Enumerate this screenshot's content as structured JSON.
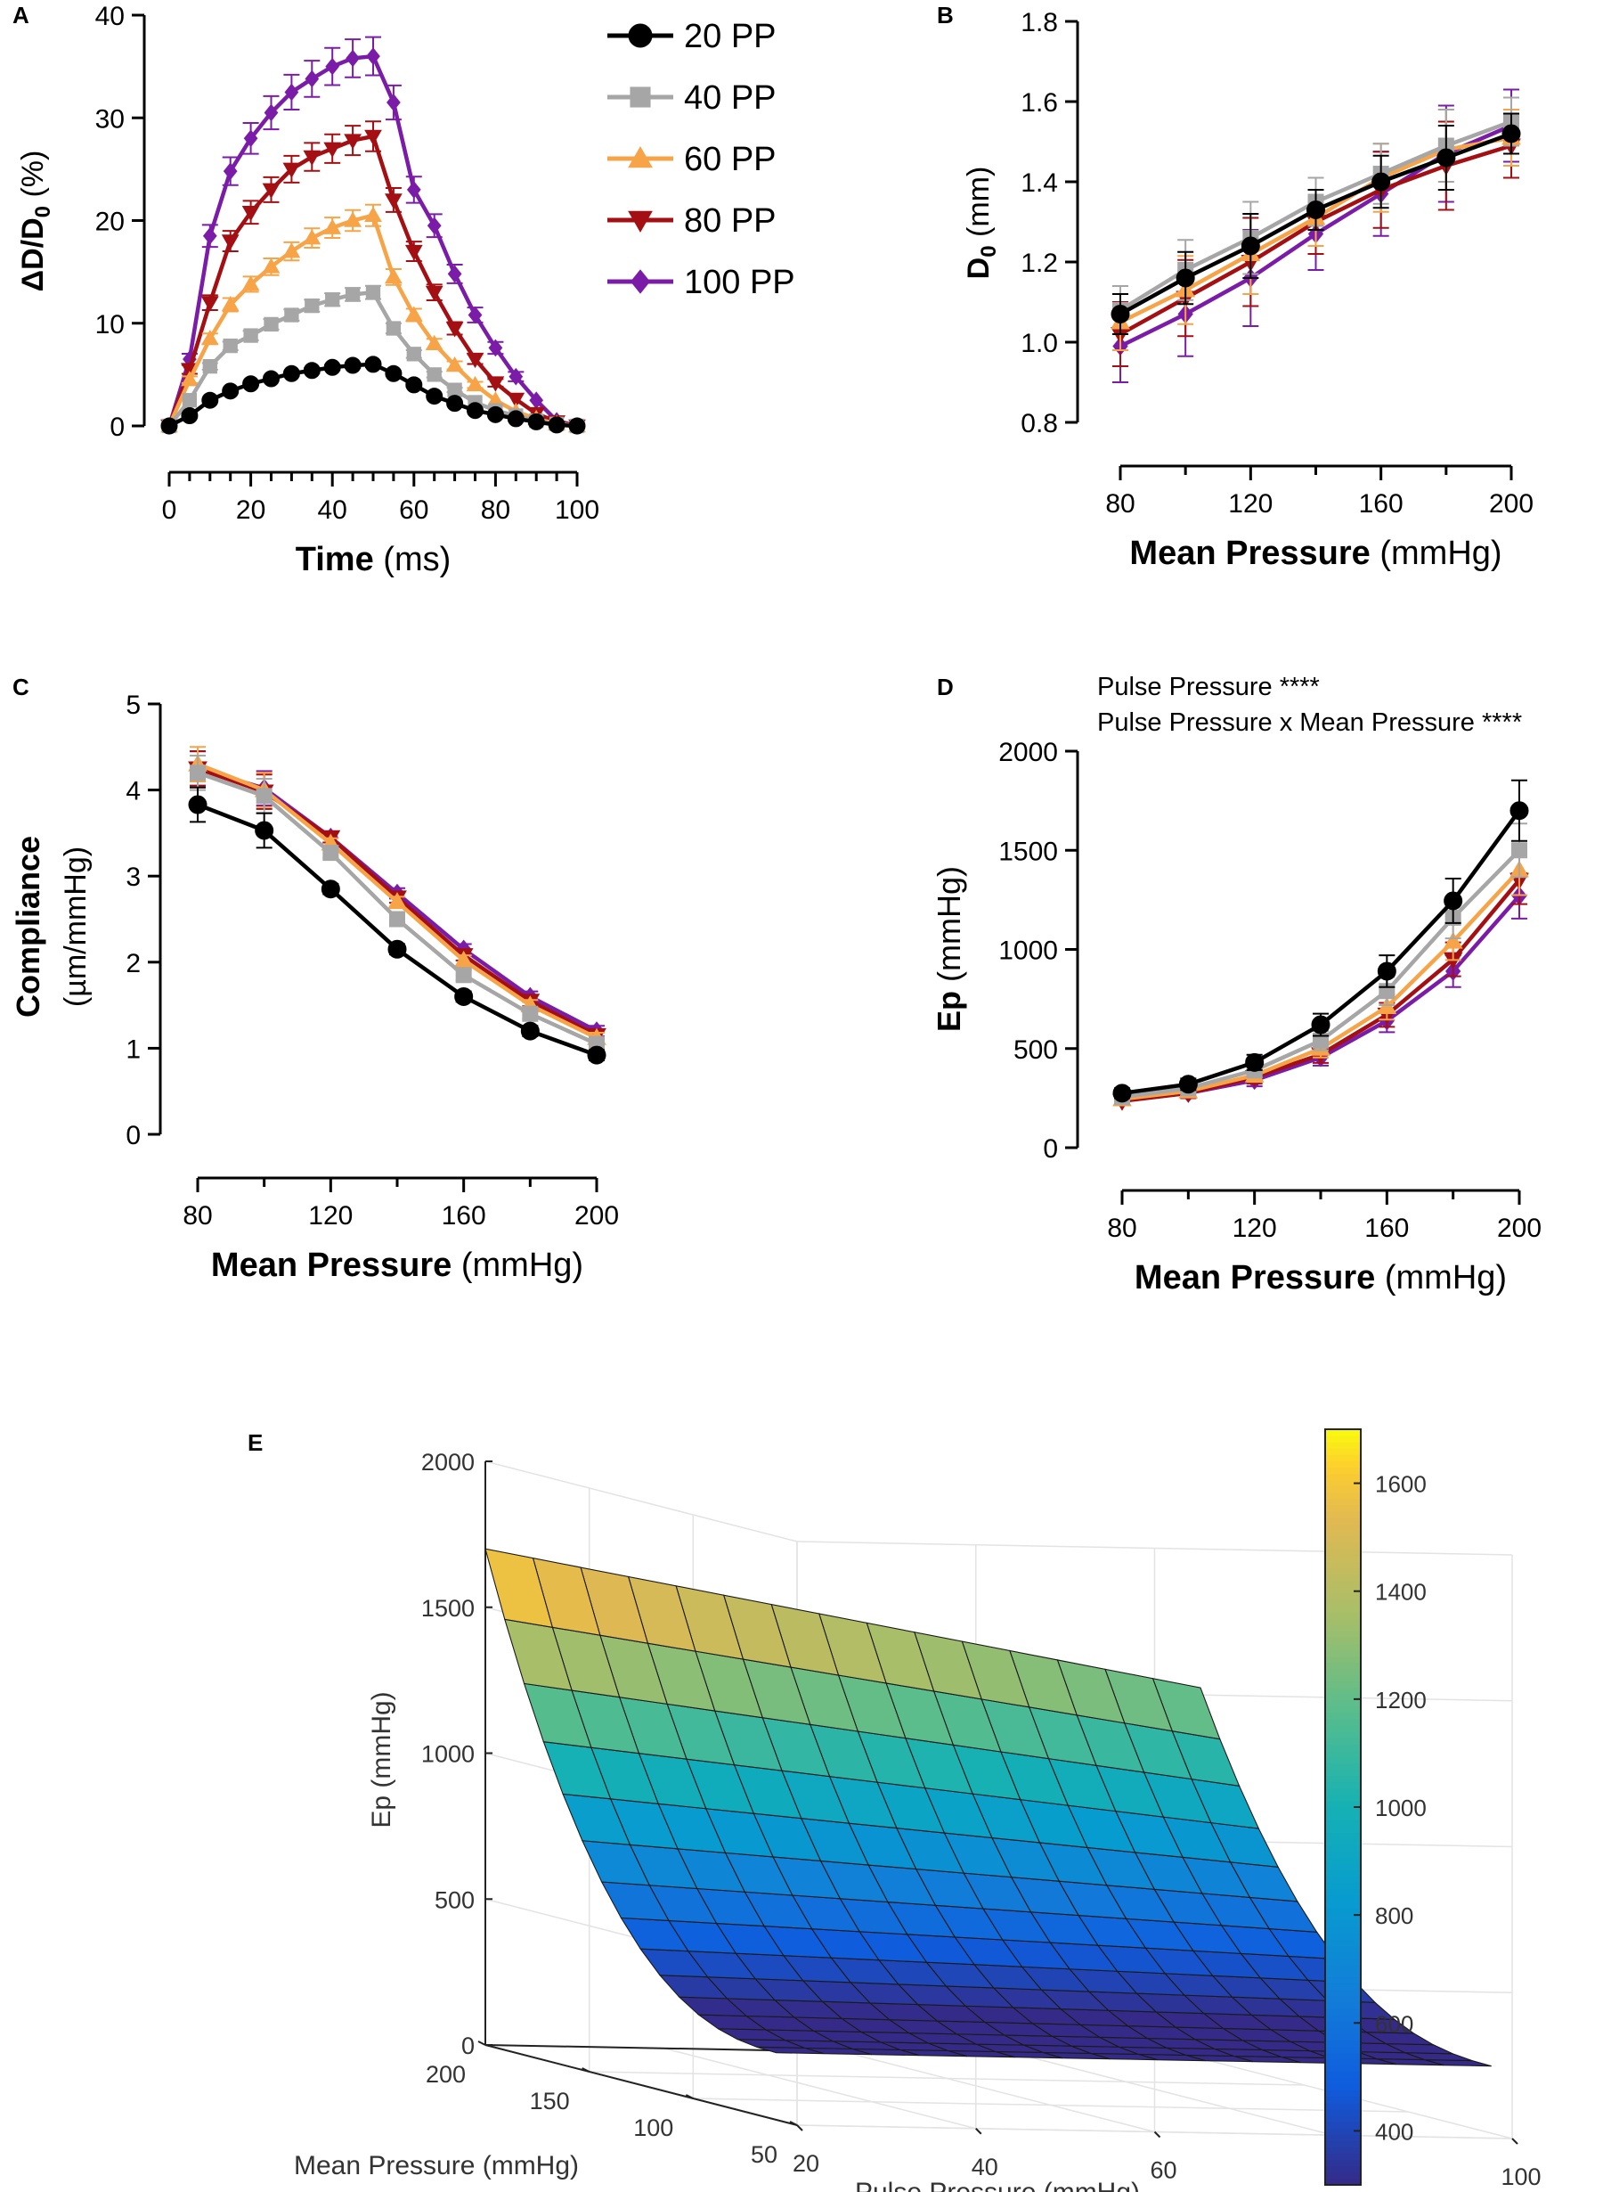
{
  "colors": {
    "pp20": "#000000",
    "pp40": "#a6a6a6",
    "pp60": "#f7a448",
    "pp80": "#a30f12",
    "pp100": "#7a1ca8"
  },
  "chart_data": [
    {
      "panel": "A",
      "type": "line",
      "xlabel_bold": "Time",
      "xlabel_unit": "(ms)",
      "ylabel": "ΔD/D₀ (%)",
      "xlim": [
        0,
        100
      ],
      "ylim": [
        0,
        40
      ],
      "xticks": [
        0,
        20,
        40,
        60,
        80,
        100
      ],
      "yticks": [
        0,
        10,
        20,
        30,
        40
      ],
      "x": [
        0,
        5,
        10,
        15,
        20,
        25,
        30,
        35,
        40,
        45,
        50,
        55,
        60,
        65,
        70,
        75,
        80,
        85,
        90,
        95,
        100
      ],
      "legend": [
        "20 PP",
        "40 PP",
        "60 PP",
        "80 PP",
        "100 PP"
      ],
      "series": [
        {
          "name": "20 PP",
          "marker": "circle",
          "values": [
            0,
            1.0,
            2.5,
            3.4,
            4.1,
            4.6,
            5.1,
            5.4,
            5.7,
            5.9,
            6.0,
            5.1,
            4.0,
            2.9,
            2.2,
            1.5,
            1.1,
            0.7,
            0.4,
            0.1,
            0
          ]
        },
        {
          "name": "40 PP",
          "marker": "square",
          "values": [
            0,
            2.5,
            5.8,
            7.8,
            8.8,
            9.9,
            10.8,
            11.7,
            12.3,
            12.8,
            13.0,
            9.5,
            7.0,
            5.0,
            3.5,
            2.3,
            1.5,
            1.0,
            0.5,
            0.2,
            0
          ]
        },
        {
          "name": "60 PP",
          "marker": "triangle",
          "values": [
            0,
            4.5,
            8.5,
            11.8,
            13.8,
            15.5,
            17.0,
            18.3,
            19.3,
            20.0,
            20.5,
            14.5,
            10.8,
            8.0,
            5.9,
            4.0,
            2.5,
            1.4,
            0.7,
            0.2,
            0
          ]
        },
        {
          "name": "80 PP",
          "marker": "triangle-down",
          "values": [
            0,
            5.5,
            12.0,
            18.0,
            20.8,
            23.0,
            25.0,
            26.2,
            27.0,
            27.8,
            28.2,
            22.0,
            17.0,
            13.0,
            9.5,
            6.5,
            4.2,
            2.6,
            1.2,
            0.4,
            0
          ]
        },
        {
          "name": "100 PP",
          "marker": "diamond",
          "values": [
            0,
            6.5,
            18.5,
            24.8,
            28.0,
            30.5,
            32.5,
            33.8,
            35.0,
            35.8,
            36.0,
            31.5,
            23.0,
            19.5,
            14.8,
            10.8,
            7.6,
            4.8,
            2.5,
            0.5,
            0
          ]
        }
      ]
    },
    {
      "panel": "B",
      "type": "line",
      "xlabel_bold": "Mean Pressure",
      "xlabel_unit": "(mmHg)",
      "ylabel": "D₀ (mm)",
      "xlim": [
        80,
        200
      ],
      "ylim": [
        0.8,
        1.8
      ],
      "xticks": [
        80,
        120,
        160,
        200
      ],
      "yticks": [
        0.8,
        1.0,
        1.2,
        1.4,
        1.6,
        1.8
      ],
      "x": [
        80,
        100,
        120,
        140,
        160,
        180,
        200
      ],
      "series": [
        {
          "name": "20 PP",
          "marker": "circle",
          "values": [
            1.07,
            1.16,
            1.24,
            1.33,
            1.4,
            1.46,
            1.52
          ]
        },
        {
          "name": "40 PP",
          "marker": "square",
          "values": [
            1.08,
            1.18,
            1.26,
            1.35,
            1.42,
            1.49,
            1.55
          ]
        },
        {
          "name": "60 PP",
          "marker": "triangle",
          "values": [
            1.05,
            1.13,
            1.22,
            1.31,
            1.41,
            1.48,
            1.51
          ]
        },
        {
          "name": "80 PP",
          "marker": "triangle-down",
          "values": [
            1.02,
            1.11,
            1.2,
            1.3,
            1.38,
            1.44,
            1.49
          ]
        },
        {
          "name": "100 PP",
          "marker": "diamond",
          "values": [
            0.99,
            1.07,
            1.16,
            1.27,
            1.37,
            1.47,
            1.54
          ]
        }
      ]
    },
    {
      "panel": "C",
      "type": "line",
      "xlabel_bold": "Mean Pressure",
      "xlabel_unit": "(mmHg)",
      "ylabel_bold": "Compliance",
      "ylabel_unit": "(µm/mmHg)",
      "xlim": [
        80,
        200
      ],
      "ylim": [
        0,
        5
      ],
      "xticks": [
        80,
        120,
        160,
        200
      ],
      "yticks": [
        0,
        1,
        2,
        3,
        4,
        5
      ],
      "x": [
        80,
        100,
        120,
        140,
        160,
        180,
        200
      ],
      "series": [
        {
          "name": "20 PP",
          "marker": "circle",
          "values": [
            3.83,
            3.53,
            2.85,
            2.15,
            1.6,
            1.2,
            0.92
          ]
        },
        {
          "name": "40 PP",
          "marker": "square",
          "values": [
            4.2,
            3.93,
            3.27,
            2.5,
            1.85,
            1.4,
            1.05
          ]
        },
        {
          "name": "60 PP",
          "marker": "triangle",
          "values": [
            4.3,
            4.0,
            3.38,
            2.7,
            2.02,
            1.5,
            1.12
          ]
        },
        {
          "name": "80 PP",
          "marker": "triangle-down",
          "values": [
            4.25,
            3.98,
            3.45,
            2.75,
            2.08,
            1.55,
            1.15
          ]
        },
        {
          "name": "100 PP",
          "marker": "diamond",
          "values": [
            4.25,
            4.02,
            3.45,
            2.8,
            2.15,
            1.6,
            1.2
          ]
        }
      ]
    },
    {
      "panel": "D",
      "type": "line",
      "xlabel_bold": "Mean Pressure",
      "xlabel_unit": "(mmHg)",
      "ylabel_bold": "Ep",
      "ylabel_unit": "(mmHg)",
      "xlim": [
        80,
        200
      ],
      "ylim": [
        0,
        2000
      ],
      "xticks": [
        80,
        120,
        160,
        200
      ],
      "yticks": [
        0,
        500,
        1000,
        1500,
        2000
      ],
      "x": [
        80,
        100,
        120,
        140,
        160,
        180,
        200
      ],
      "annotations": [
        "Pulse Pressure ****",
        "Pulse Pressure x Mean Pressure ****"
      ],
      "series": [
        {
          "name": "20 PP",
          "marker": "circle",
          "values": [
            275,
            320,
            430,
            620,
            890,
            1245,
            1700
          ]
        },
        {
          "name": "40 PP",
          "marker": "square",
          "values": [
            255,
            300,
            390,
            540,
            790,
            1160,
            1500
          ]
        },
        {
          "name": "60 PP",
          "marker": "triangle",
          "values": [
            245,
            285,
            365,
            500,
            710,
            1040,
            1400
          ]
        },
        {
          "name": "80 PP",
          "marker": "triangle-down",
          "values": [
            235,
            275,
            355,
            470,
            670,
            950,
            1350
          ]
        },
        {
          "name": "100 PP",
          "marker": "diamond",
          "values": [
            240,
            275,
            340,
            455,
            640,
            890,
            1270
          ]
        }
      ]
    },
    {
      "panel": "E",
      "type": "surface",
      "zlabel": "Ep (mmHg)",
      "ylabel": "Mean Pressure (mmHg)",
      "xlabel": "Pulse Pressure (mmHg)",
      "zticks": [
        0,
        500,
        1000,
        1500,
        2000
      ],
      "mean_ticks": [
        200,
        150,
        100,
        50
      ],
      "pulse_ticks": [
        20,
        40,
        60,
        80,
        100
      ],
      "colorbar_ticks": [
        400,
        600,
        800,
        1000,
        1200,
        1400,
        1600
      ],
      "mean_range": [
        60,
        200
      ],
      "pulse_range": [
        20,
        100
      ],
      "z_range": [
        0,
        2000
      ],
      "color_range": [
        300,
        1700
      ],
      "grid_size": [
        15,
        15
      ],
      "corner_values": {
        "mean200_pulse20": 1700,
        "mean200_pulse100": 1270,
        "mean60_pulse20": 230,
        "mean60_pulse100": 230
      }
    }
  ]
}
